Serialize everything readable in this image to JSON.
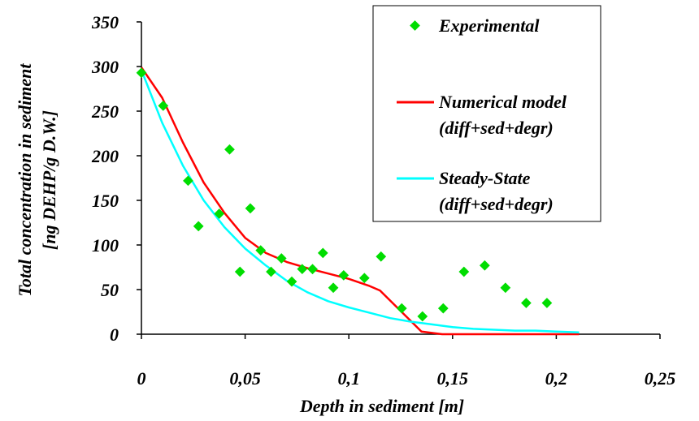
{
  "chart_data": {
    "type": "scatter",
    "xlabel": "Depth in sediment [m]",
    "ylabel_lines": [
      "Total concentration in sediment",
      "[ng DEHP/g D.W.]"
    ],
    "xlim": [
      0,
      0.25
    ],
    "ylim": [
      0,
      350
    ],
    "x_ticks": [
      0,
      0.05,
      0.1,
      0.15,
      0.2,
      0.25
    ],
    "x_tick_labels": [
      "0",
      "0,05",
      "0,1",
      "0,15",
      "0,2",
      "0,25"
    ],
    "y_ticks": [
      0,
      50,
      100,
      150,
      200,
      250,
      300,
      350
    ],
    "y_tick_labels": [
      "0",
      "50",
      "100",
      "150",
      "200",
      "250",
      "300",
      "350"
    ],
    "grid": false,
    "legend_position": "top-right",
    "series": [
      {
        "name": "Experimental",
        "kind": "markers",
        "color": "#00dd00",
        "x": [
          0.0,
          0.0105,
          0.0225,
          0.0275,
          0.0375,
          0.0425,
          0.0475,
          0.0525,
          0.0575,
          0.0625,
          0.0675,
          0.0725,
          0.0775,
          0.0825,
          0.0875,
          0.0925,
          0.0975,
          0.1075,
          0.1155,
          0.1255,
          0.1355,
          0.1455,
          0.1555,
          0.1655,
          0.1755,
          0.1855,
          0.1955
        ],
        "y": [
          293,
          256,
          172,
          121,
          135,
          207,
          70,
          141,
          94,
          70,
          85,
          59,
          73,
          73,
          91,
          52,
          66,
          63,
          87,
          29,
          20,
          29,
          70,
          77,
          52,
          35,
          35
        ]
      },
      {
        "name_lines": [
          "Numerical model",
          "(diff+sed+degr)"
        ],
        "kind": "line",
        "color": "#ff0000",
        "x": [
          0.0,
          0.01,
          0.02,
          0.03,
          0.04,
          0.05,
          0.06,
          0.07,
          0.08,
          0.09,
          0.1,
          0.11,
          0.115,
          0.125,
          0.135,
          0.145,
          0.155,
          0.165,
          0.175,
          0.185,
          0.195,
          0.205,
          0.211
        ],
        "y": [
          299,
          265,
          215,
          170,
          136,
          108,
          91,
          81,
          74,
          68,
          62,
          54,
          49,
          26,
          3,
          0,
          0,
          0,
          0,
          0,
          0,
          0,
          0
        ]
      },
      {
        "name_lines": [
          "Steady-State",
          "(diff+sed+degr)"
        ],
        "kind": "line",
        "color": "#00ffff",
        "x": [
          0.0,
          0.01,
          0.02,
          0.03,
          0.04,
          0.05,
          0.06,
          0.07,
          0.08,
          0.09,
          0.1,
          0.11,
          0.12,
          0.13,
          0.14,
          0.15,
          0.16,
          0.17,
          0.18,
          0.19,
          0.2,
          0.211
        ],
        "y": [
          296,
          237,
          189,
          150,
          120,
          96,
          77,
          60,
          47,
          37,
          30,
          24,
          18,
          14,
          11,
          8,
          6,
          5,
          4,
          4,
          3,
          2
        ]
      }
    ]
  }
}
